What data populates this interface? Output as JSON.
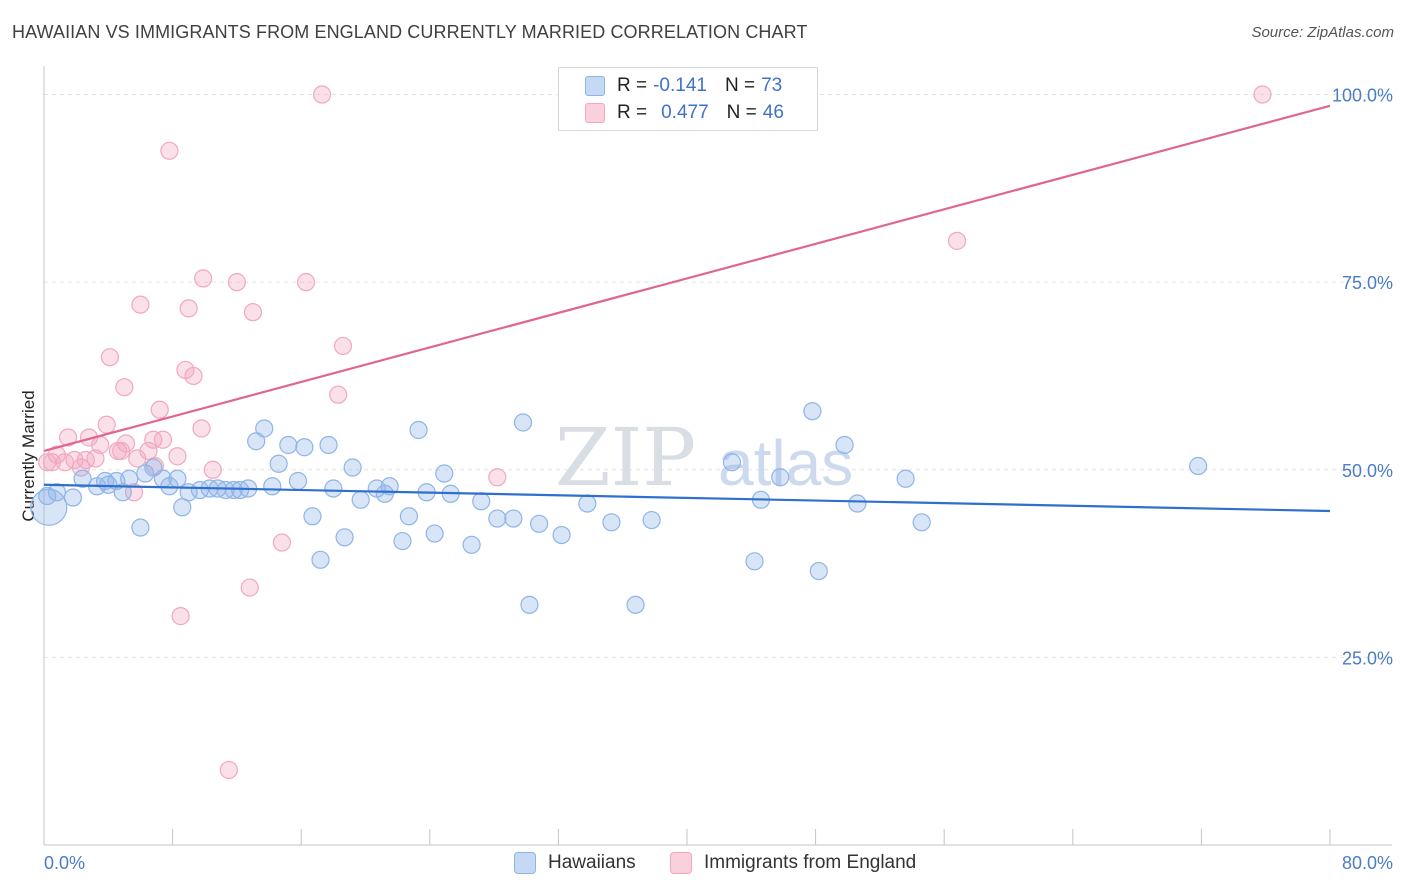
{
  "header": {
    "title": "HAWAIIAN VS IMMIGRANTS FROM ENGLAND CURRENTLY MARRIED CORRELATION CHART",
    "source": "Source: ZipAtlas.com"
  },
  "legend": {
    "series1": {
      "r_label": "R =",
      "r_value": "-0.141",
      "n_label": "N =",
      "n_value": "73"
    },
    "series2": {
      "r_label": "R =",
      "r_value": "0.477",
      "n_label": "N =",
      "n_value": "46"
    }
  },
  "watermark": {
    "zip": "ZIP",
    "atlas": "atlas"
  },
  "chart_data": {
    "type": "scatter",
    "title": "HAWAIIAN VS IMMIGRANTS FROM ENGLAND CURRENTLY MARRIED CORRELATION CHART",
    "xlabel": "",
    "ylabel": "Currently Married",
    "xlim": [
      0,
      80
    ],
    "ylim": [
      0,
      103
    ],
    "x_tick_labels": [
      "0.0%",
      "80.0%"
    ],
    "y_ticks": [
      {
        "value": 25,
        "label": "25.0%"
      },
      {
        "value": 50,
        "label": "50.0%"
      },
      {
        "value": 75,
        "label": "75.0%"
      },
      {
        "value": 100,
        "label": "100.0%"
      }
    ],
    "colors": {
      "hawaiians": "#8fb4e8",
      "hawaiians_line": "#2f6fcd",
      "england": "#f2a7bf",
      "england_line": "#e0668e"
    },
    "series": [
      {
        "name": "Hawaiians",
        "trend": {
          "x": [
            0,
            80
          ],
          "y": [
            48.0,
            44.5
          ]
        },
        "points": [
          [
            0.2,
            46.5
          ],
          [
            0.8,
            47.0
          ],
          [
            1.8,
            46.3
          ],
          [
            2.4,
            48.8
          ],
          [
            3.3,
            47.8
          ],
          [
            3.8,
            48.5
          ],
          [
            4.5,
            48.5
          ],
          [
            4.9,
            47.0
          ],
          [
            5.3,
            48.8
          ],
          [
            6.0,
            42.3
          ],
          [
            6.3,
            49.5
          ],
          [
            6.8,
            50.3
          ],
          [
            7.4,
            48.8
          ],
          [
            7.8,
            47.8
          ],
          [
            8.3,
            48.8
          ],
          [
            8.6,
            45.0
          ],
          [
            9.7,
            47.3
          ],
          [
            10.3,
            47.5
          ],
          [
            10.8,
            47.5
          ],
          [
            11.3,
            47.3
          ],
          [
            11.8,
            47.3
          ],
          [
            12.2,
            47.3
          ],
          [
            12.7,
            47.5
          ],
          [
            13.2,
            53.8
          ],
          [
            13.7,
            55.5
          ],
          [
            14.2,
            47.8
          ],
          [
            14.6,
            50.8
          ],
          [
            15.2,
            53.3
          ],
          [
            15.8,
            48.5
          ],
          [
            16.2,
            53.0
          ],
          [
            16.7,
            43.8
          ],
          [
            17.2,
            38.0
          ],
          [
            17.7,
            53.3
          ],
          [
            18.7,
            41.0
          ],
          [
            19.2,
            50.3
          ],
          [
            19.7,
            46.0
          ],
          [
            20.7,
            47.5
          ],
          [
            21.2,
            46.8
          ],
          [
            21.5,
            47.8
          ],
          [
            22.3,
            40.5
          ],
          [
            22.7,
            43.8
          ],
          [
            23.3,
            55.3
          ],
          [
            23.8,
            47.0
          ],
          [
            24.3,
            41.5
          ],
          [
            24.9,
            49.5
          ],
          [
            25.3,
            46.8
          ],
          [
            26.6,
            40.0
          ],
          [
            27.2,
            45.8
          ],
          [
            28.2,
            43.5
          ],
          [
            29.2,
            43.5
          ],
          [
            29.8,
            56.3
          ],
          [
            30.2,
            32.0
          ],
          [
            30.8,
            42.8
          ],
          [
            32.2,
            41.3
          ],
          [
            33.8,
            45.5
          ],
          [
            35.3,
            43.0
          ],
          [
            36.8,
            32.0
          ],
          [
            37.8,
            43.3
          ],
          [
            42.8,
            51.0
          ],
          [
            44.2,
            37.8
          ],
          [
            44.6,
            46.0
          ],
          [
            45.8,
            49.0
          ],
          [
            47.8,
            57.8
          ],
          [
            48.2,
            36.5
          ],
          [
            49.8,
            53.3
          ],
          [
            50.6,
            45.5
          ],
          [
            53.6,
            48.8
          ],
          [
            54.6,
            43.0
          ],
          [
            71.8,
            50.5
          ],
          [
            4.0,
            48.0
          ],
          [
            9.0,
            47.0
          ],
          [
            18.0,
            47.5
          ],
          [
            0.3,
            45.0
          ]
        ]
      },
      {
        "name": "Immigrants from England",
        "trend": {
          "x": [
            0,
            80
          ],
          "y": [
            52.5,
            98.5
          ]
        },
        "points": [
          [
            0.2,
            51.0
          ],
          [
            0.8,
            52.0
          ],
          [
            1.3,
            51.0
          ],
          [
            1.5,
            54.3
          ],
          [
            1.9,
            51.3
          ],
          [
            2.3,
            50.3
          ],
          [
            2.6,
            51.3
          ],
          [
            2.8,
            54.3
          ],
          [
            3.2,
            51.5
          ],
          [
            3.5,
            53.3
          ],
          [
            3.9,
            56.0
          ],
          [
            4.1,
            65.0
          ],
          [
            4.6,
            52.5
          ],
          [
            5.0,
            61.0
          ],
          [
            5.1,
            53.5
          ],
          [
            5.6,
            47.0
          ],
          [
            5.8,
            51.5
          ],
          [
            6.0,
            72.0
          ],
          [
            6.5,
            52.5
          ],
          [
            6.8,
            54.0
          ],
          [
            6.9,
            50.5
          ],
          [
            7.2,
            58.0
          ],
          [
            7.4,
            54.0
          ],
          [
            7.8,
            92.5
          ],
          [
            8.3,
            51.8
          ],
          [
            8.5,
            30.5
          ],
          [
            8.8,
            63.3
          ],
          [
            9.0,
            71.5
          ],
          [
            9.3,
            62.5
          ],
          [
            9.8,
            55.5
          ],
          [
            9.9,
            75.5
          ],
          [
            10.5,
            50.0
          ],
          [
            11.5,
            10.0
          ],
          [
            12.0,
            75.0
          ],
          [
            12.8,
            34.3
          ],
          [
            13.0,
            71.0
          ],
          [
            14.8,
            40.3
          ],
          [
            16.3,
            75.0
          ],
          [
            17.3,
            100.0
          ],
          [
            18.3,
            60.0
          ],
          [
            18.6,
            66.5
          ],
          [
            28.2,
            49.0
          ],
          [
            56.8,
            80.5
          ],
          [
            75.8,
            100.0
          ],
          [
            0.5,
            51.0
          ],
          [
            4.8,
            52.5
          ]
        ]
      }
    ]
  },
  "bottom_legend": {
    "items": [
      {
        "label": "Hawaiians"
      },
      {
        "label": "Immigrants from England"
      }
    ]
  }
}
